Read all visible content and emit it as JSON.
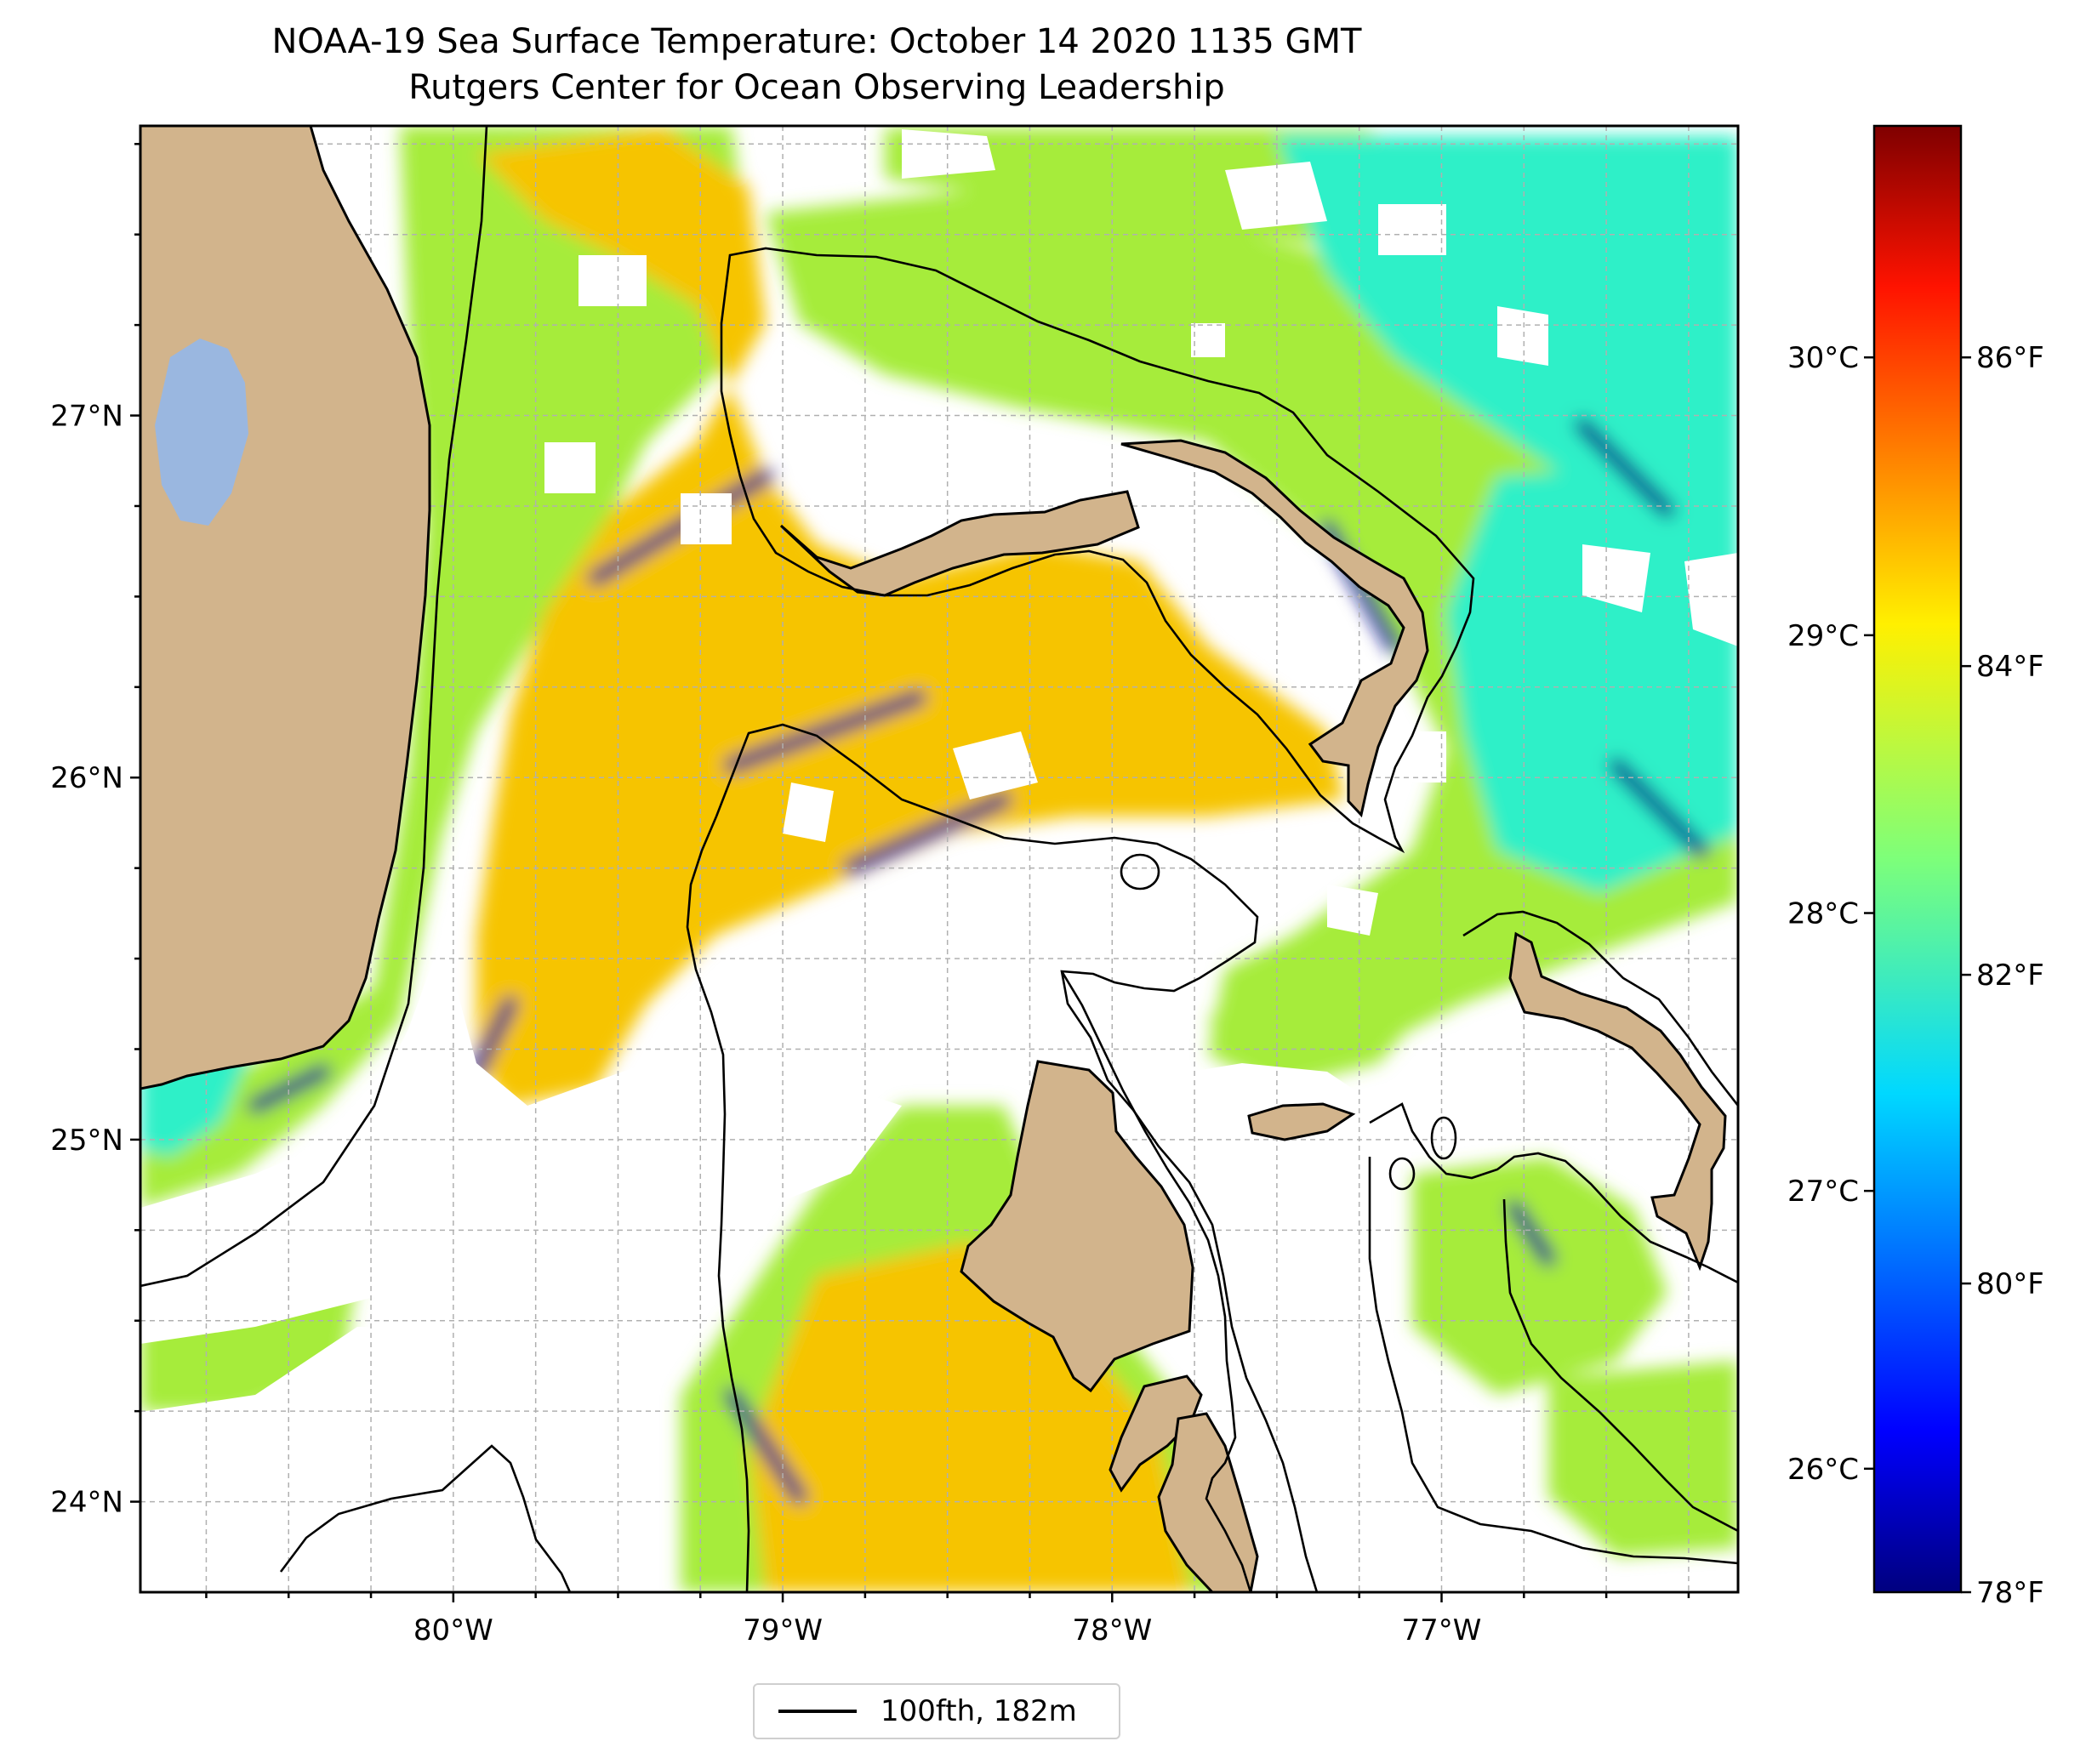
{
  "title": "NOAA-19 Sea Surface Temperature: October 14 2020 1135 GMT",
  "subtitle": "Rutgers Center for Ocean Observing Leadership",
  "map": {
    "lon_range": [
      -80.95,
      -76.1
    ],
    "lat_range": [
      23.75,
      27.8
    ],
    "lon_ticks": [
      {
        "value": -80,
        "label": "80°W"
      },
      {
        "value": -79,
        "label": "79°W"
      },
      {
        "value": -78,
        "label": "78°W"
      },
      {
        "value": -77,
        "label": "77°W"
      }
    ],
    "lat_ticks": [
      {
        "value": 27,
        "label": "27°N"
      },
      {
        "value": 26,
        "label": "26°N"
      },
      {
        "value": 25,
        "label": "25°N"
      },
      {
        "value": 24,
        "label": "24°N"
      }
    ],
    "gridlines": true,
    "colors": {
      "land": "#d2b48c",
      "lake": "#9ab7e0",
      "coastline": "#000000",
      "gridline": "#b0b0b0",
      "sst_warm": "#f6c400",
      "sst_mid": "#a6ec3a",
      "sst_cool": "#2ef0c8",
      "sst_cold": "#00008c"
    }
  },
  "colorbar": {
    "colormap": "jet",
    "range_f": [
      78,
      87.5
    ],
    "fahrenheit_ticks": [
      {
        "value": 86,
        "label": "86°F"
      },
      {
        "value": 84,
        "label": "84°F"
      },
      {
        "value": 82,
        "label": "82°F"
      },
      {
        "value": 80,
        "label": "80°F"
      },
      {
        "value": 78,
        "label": "78°F"
      }
    ],
    "celsius_ticks": [
      {
        "value": 30,
        "label": "30°C"
      },
      {
        "value": 29,
        "label": "29°C"
      },
      {
        "value": 28,
        "label": "28°C"
      },
      {
        "value": 27,
        "label": "27°C"
      },
      {
        "value": 26,
        "label": "26°C"
      }
    ]
  },
  "legend": {
    "label": "100fth, 182m",
    "position": "bottom-center"
  }
}
